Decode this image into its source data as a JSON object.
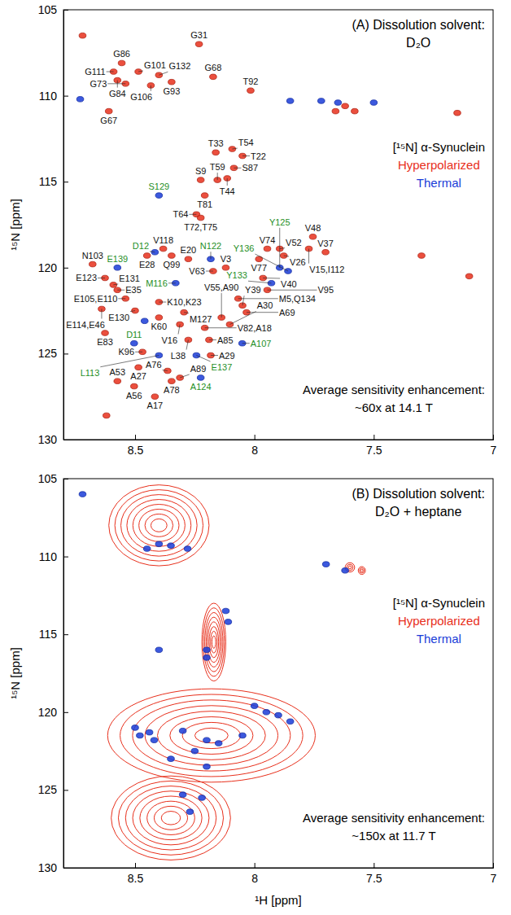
{
  "chart_data": [
    {
      "type": "scatter",
      "title": "(A) Dissolution solvent:",
      "subtitle": "D₂O",
      "annotations": [
        "[¹⁵N] α-Synuclein",
        "Average sensitivity enhancement:",
        "~60x at 14.1 T"
      ],
      "ylabel": "¹⁵N [ppm]",
      "xlim": [
        8.8,
        7
      ],
      "ylim": [
        105,
        130
      ],
      "xticks": [
        8.5,
        8,
        7.5,
        7
      ],
      "yticks": [
        105,
        110,
        115,
        120,
        125,
        130
      ],
      "grid": false,
      "legend": "right",
      "series": [
        {
          "name": "Hyperpolarized",
          "color": "#e8301c",
          "x": [
            8.232,
            8.556,
            8.59,
            8.486,
            8.4,
            8.173,
            8.574,
            8.347,
            8.54,
            8.434,
            8.61,
            8.016,
            8.162,
            8.093,
            8.05,
            8.086,
            8.114,
            8.155,
            8.225,
            8.208,
            8.243,
            8.225,
            8.382,
            8.347,
            8.277,
            8.45,
            8.678,
            8.626,
            8.591,
            8.574,
            8.54,
            8.4,
            8.5,
            8.64,
            8.4,
            8.295,
            8.626,
            8.469,
            8.312,
            8.277,
            8.486,
            8.574,
            8.504,
            8.417,
            8.364,
            8.347,
            8.312,
            8.19,
            8.183,
            8.208,
            8.138,
            8.103,
            8.033,
            8.05,
            8.068,
            8.173,
            8.12,
            7.946,
            7.894,
            7.877,
            7.981,
            7.755,
            7.702,
            7.772,
            7.964,
            7.946,
            7.62,
            7.58,
            7.66,
            8.62,
            8.72,
            7.3,
            7.1,
            7.15
          ],
          "values": [
            107.0,
            108.1,
            108.6,
            108.6,
            108.8,
            108.9,
            109.1,
            109.2,
            109.3,
            109.4,
            110.9,
            109.7,
            113.3,
            113.1,
            113.5,
            114.2,
            114.8,
            114.9,
            114.9,
            115.8,
            116.9,
            117.1,
            118.9,
            119.3,
            119.5,
            119.3,
            119.8,
            120.6,
            121.0,
            121.3,
            121.8,
            122.0,
            122.5,
            122.4,
            122.9,
            122.6,
            123.8,
            124.9,
            123.3,
            124.2,
            125.8,
            126.6,
            126.9,
            127.5,
            126.0,
            126.6,
            126.4,
            124.2,
            125.1,
            123.5,
            122.9,
            123.3,
            122.6,
            122.2,
            121.8,
            120.2,
            120.0,
            118.9,
            118.9,
            119.3,
            119.5,
            118.2,
            119.1,
            118.9,
            120.6,
            121.3,
            110.6,
            110.9,
            110.9,
            128.6,
            106.5,
            119.3,
            120.5,
            111.0
          ],
          "labels": [
            "G31",
            "G86",
            "G111",
            "G101",
            "G132",
            "G68",
            "G84",
            "G93",
            "G73",
            "G106",
            "G67",
            "T92",
            "T33",
            "T54",
            "T22",
            "S87",
            "T44",
            "T59",
            "S9",
            "T81",
            "T64",
            "T72,T75",
            "V118",
            "Q99",
            "E20",
            "E28",
            "N103",
            "E123",
            "E131",
            "E35",
            "E105,E110",
            "K10,K23",
            "E130",
            "E114,E46",
            "K60",
            "M127",
            "E83",
            "K96",
            "V16",
            "L38",
            "A27",
            "A53",
            "A56",
            "A17",
            "A76",
            "A78",
            "A89",
            "A85",
            "A29",
            "V82,A18",
            "V55,A90",
            "A30",
            "A69",
            "Y39",
            "M5,Q134",
            "V63",
            "V3",
            "V74",
            "V52",
            "V26",
            "V77",
            "V48",
            "V37",
            "V15,I112",
            "V40",
            "V95",
            null,
            null,
            null,
            null,
            null,
            null,
            null,
            null
          ]
        },
        {
          "name": "Thermal",
          "color": "#1a3cd8",
          "x": [
            8.4,
            8.417,
            8.183,
            8.574,
            8.33,
            7.894,
            7.859,
            7.929,
            8.504,
            8.4,
            8.243,
            8.225,
            8.051,
            7.72,
            7.65,
            8.46,
            8.73,
            7.5,
            7.85
          ],
          "values": [
            115.8,
            119.1,
            119.5,
            120.0,
            120.9,
            120.0,
            120.2,
            120.9,
            124.4,
            125.1,
            125.1,
            126.4,
            124.4,
            110.3,
            110.4,
            123.1,
            110.2,
            110.4,
            110.3
          ],
          "labels": [
            "S129",
            "D12",
            "N122",
            "E139",
            "M116",
            "Y125",
            "Y136",
            "Y133",
            "D11",
            "L113",
            "E137",
            "A124",
            "A107",
            null,
            null,
            null,
            null,
            null,
            null
          ]
        }
      ]
    },
    {
      "type": "scatter",
      "title": "(B) Dissolution solvent:",
      "subtitle": "D₂O + heptane",
      "annotations": [
        "[¹⁵N] α-Synuclein",
        "Average sensitivity enhancement:",
        "~150x at 11.7 T"
      ],
      "xlabel": "¹H [ppm]",
      "ylabel": "¹⁵N [ppm]",
      "xlim": [
        8.8,
        7
      ],
      "ylim": [
        105,
        130
      ],
      "xticks": [
        8.5,
        8,
        7.5,
        7
      ],
      "yticks": [
        105,
        110,
        115,
        120,
        125,
        130
      ],
      "grid": false,
      "legend": "right",
      "series": [
        {
          "name": "Hyperpolarized",
          "color": "#e8301c",
          "type": "contour",
          "x": [
            8.4,
            8.17,
            8.18,
            8.35,
            7.6,
            7.55
          ],
          "values": [
            108,
            115.5,
            121.5,
            126.8,
            110.7,
            110.9
          ],
          "x_width": [
            0.42,
            0.1,
            0.87,
            0.5,
            0.04,
            0.03
          ],
          "y_width": [
            5.2,
            5,
            6,
            5.4,
            0.6,
            0.5
          ]
        },
        {
          "name": "Thermal",
          "color": "#1a3cd8",
          "x": [
            8.4,
            8.45,
            8.35,
            8.28,
            8.12,
            8.11,
            8.2,
            8.4,
            8.48,
            8.44,
            8.42,
            8.5,
            8.3,
            8.2,
            8.25,
            8.15,
            8.05,
            7.95,
            7.9,
            7.85,
            8.0,
            8.35,
            8.2,
            8.3,
            8.22,
            8.27,
            8.72,
            7.62,
            7.7,
            8.2
          ],
          "values": [
            109.2,
            109.5,
            109.3,
            109.5,
            113.5,
            114.2,
            116.0,
            116.0,
            121.5,
            121.3,
            121.8,
            121.0,
            121.2,
            121.8,
            122.5,
            122.0,
            121.5,
            120.0,
            120.2,
            120.6,
            119.6,
            123.0,
            123.5,
            125.3,
            125.5,
            126.4,
            106.0,
            110.9,
            110.5,
            116.5
          ]
        }
      ]
    }
  ]
}
